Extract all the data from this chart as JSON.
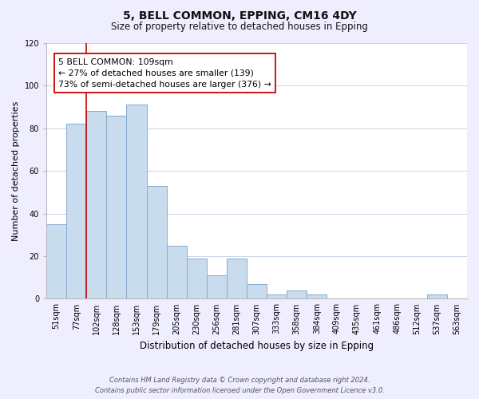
{
  "title1": "5, BELL COMMON, EPPING, CM16 4DY",
  "title2": "Size of property relative to detached houses in Epping",
  "xlabel": "Distribution of detached houses by size in Epping",
  "ylabel": "Number of detached properties",
  "bar_labels": [
    "51sqm",
    "77sqm",
    "102sqm",
    "128sqm",
    "153sqm",
    "179sqm",
    "205sqm",
    "230sqm",
    "256sqm",
    "281sqm",
    "307sqm",
    "333sqm",
    "358sqm",
    "384sqm",
    "409sqm",
    "435sqm",
    "461sqm",
    "486sqm",
    "512sqm",
    "537sqm",
    "563sqm"
  ],
  "bar_values": [
    35,
    82,
    88,
    86,
    91,
    53,
    25,
    19,
    11,
    19,
    7,
    2,
    4,
    2,
    0,
    0,
    0,
    0,
    0,
    2,
    0
  ],
  "bar_color": "#c8dcee",
  "bar_edge_color": "#88aacc",
  "vline_index": 2,
  "vline_color": "#cc0000",
  "annotation_text_line1": "5 BELL COMMON: 109sqm",
  "annotation_text_line2": "← 27% of detached houses are smaller (139)",
  "annotation_text_line3": "73% of semi-detached houses are larger (376) →",
  "ylim": [
    0,
    120
  ],
  "yticks": [
    0,
    20,
    40,
    60,
    80,
    100,
    120
  ],
  "footer_line1": "Contains HM Land Registry data © Crown copyright and database right 2024.",
  "footer_line2": "Contains public sector information licensed under the Open Government Licence v3.0.",
  "bg_color": "#eeeeff",
  "plot_bg_color": "#ffffff",
  "grid_color": "#c8d4e8"
}
